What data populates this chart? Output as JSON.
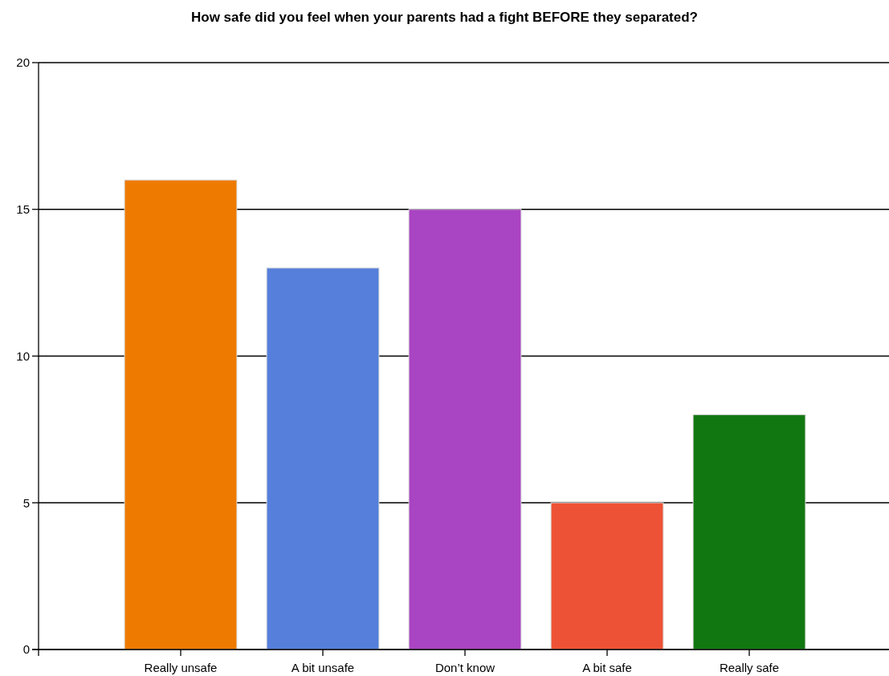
{
  "chart_data": {
    "type": "bar",
    "title": "How safe did you feel when your parents had a fight BEFORE they separated?",
    "categories": [
      "Really unsafe",
      "A bit unsafe",
      "Don’t know",
      "A bit safe",
      "Really safe"
    ],
    "values": [
      16,
      13,
      15,
      5,
      8
    ],
    "colors": [
      "#ee7b00",
      "#557fdb",
      "#a944c2",
      "#ee5236",
      "#117811"
    ],
    "ylim": [
      0,
      20
    ],
    "yticks": [
      0,
      5,
      10,
      15,
      20
    ],
    "grid": "y"
  }
}
